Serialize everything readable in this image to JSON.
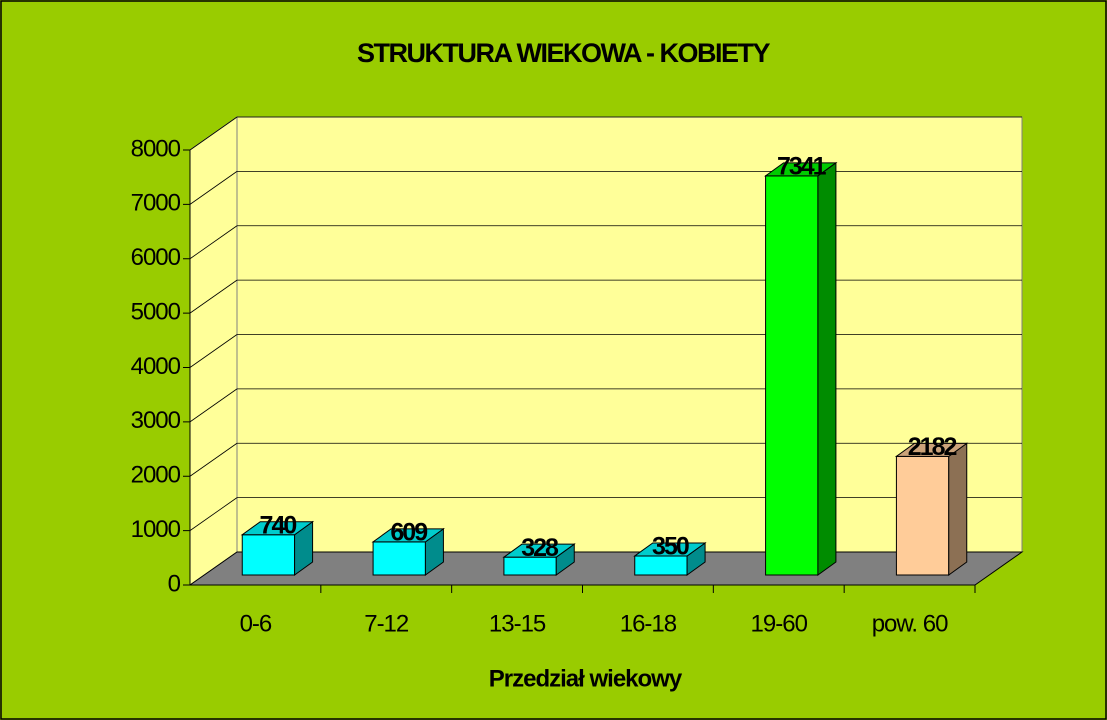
{
  "chart_data": {
    "type": "bar3d",
    "title": "STRUKTURA WIEKOWA - KOBIETY",
    "x_label": "Przedział wiekowy",
    "categories": [
      "0-6",
      "7-12",
      "13-15",
      "16-18",
      "19-60",
      "pow. 60"
    ],
    "values": [
      740,
      609,
      328,
      350,
      7341,
      2182
    ],
    "colors": [
      "#00ffff",
      "#00ffff",
      "#00ffff",
      "#00ffff",
      "#00ff00",
      "#ffcc99"
    ],
    "ylim": [
      0,
      8000
    ],
    "yticks": [
      0,
      1000,
      2000,
      3000,
      4000,
      5000,
      6000,
      7000,
      8000
    ],
    "grid": true
  }
}
